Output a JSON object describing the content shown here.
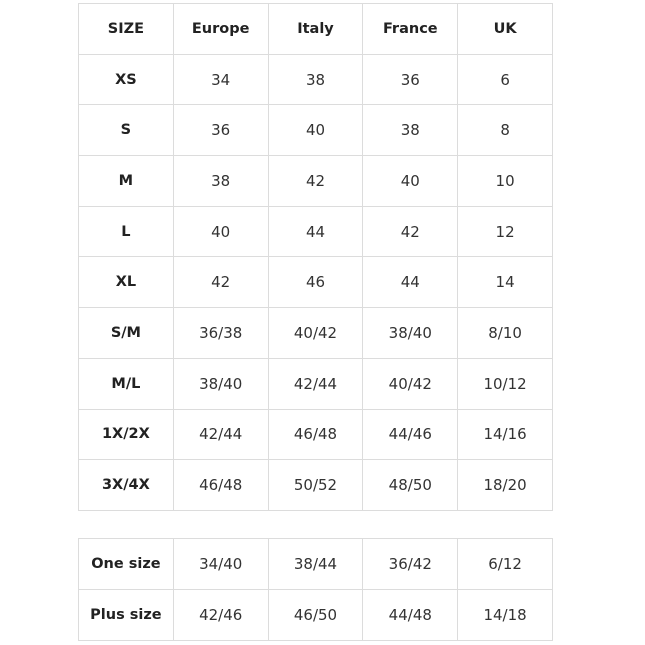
{
  "table": {
    "header": [
      "SIZE",
      "Europe",
      "Italy",
      "France",
      "UK"
    ],
    "rows": [
      [
        "XS",
        "34",
        "38",
        "36",
        "6"
      ],
      [
        "S",
        "36",
        "40",
        "38",
        "8"
      ],
      [
        "M",
        "38",
        "42",
        "40",
        "10"
      ],
      [
        "L",
        "40",
        "44",
        "42",
        "12"
      ],
      [
        "XL",
        "42",
        "46",
        "44",
        "14"
      ],
      [
        "S/M",
        "36/38",
        "40/42",
        "38/40",
        "8/10"
      ],
      [
        "M/L",
        "38/40",
        "42/44",
        "40/42",
        "10/12"
      ],
      [
        "1X/2X",
        "42/44",
        "46/48",
        "44/46",
        "14/16"
      ],
      [
        "3X/4X",
        "46/48",
        "50/52",
        "48/50",
        "18/20"
      ]
    ]
  },
  "table2": {
    "rows": [
      [
        "One size",
        "34/40",
        "38/44",
        "36/42",
        "6/12"
      ],
      [
        "Plus size",
        "42/46",
        "46/50",
        "44/48",
        "14/18"
      ]
    ]
  }
}
